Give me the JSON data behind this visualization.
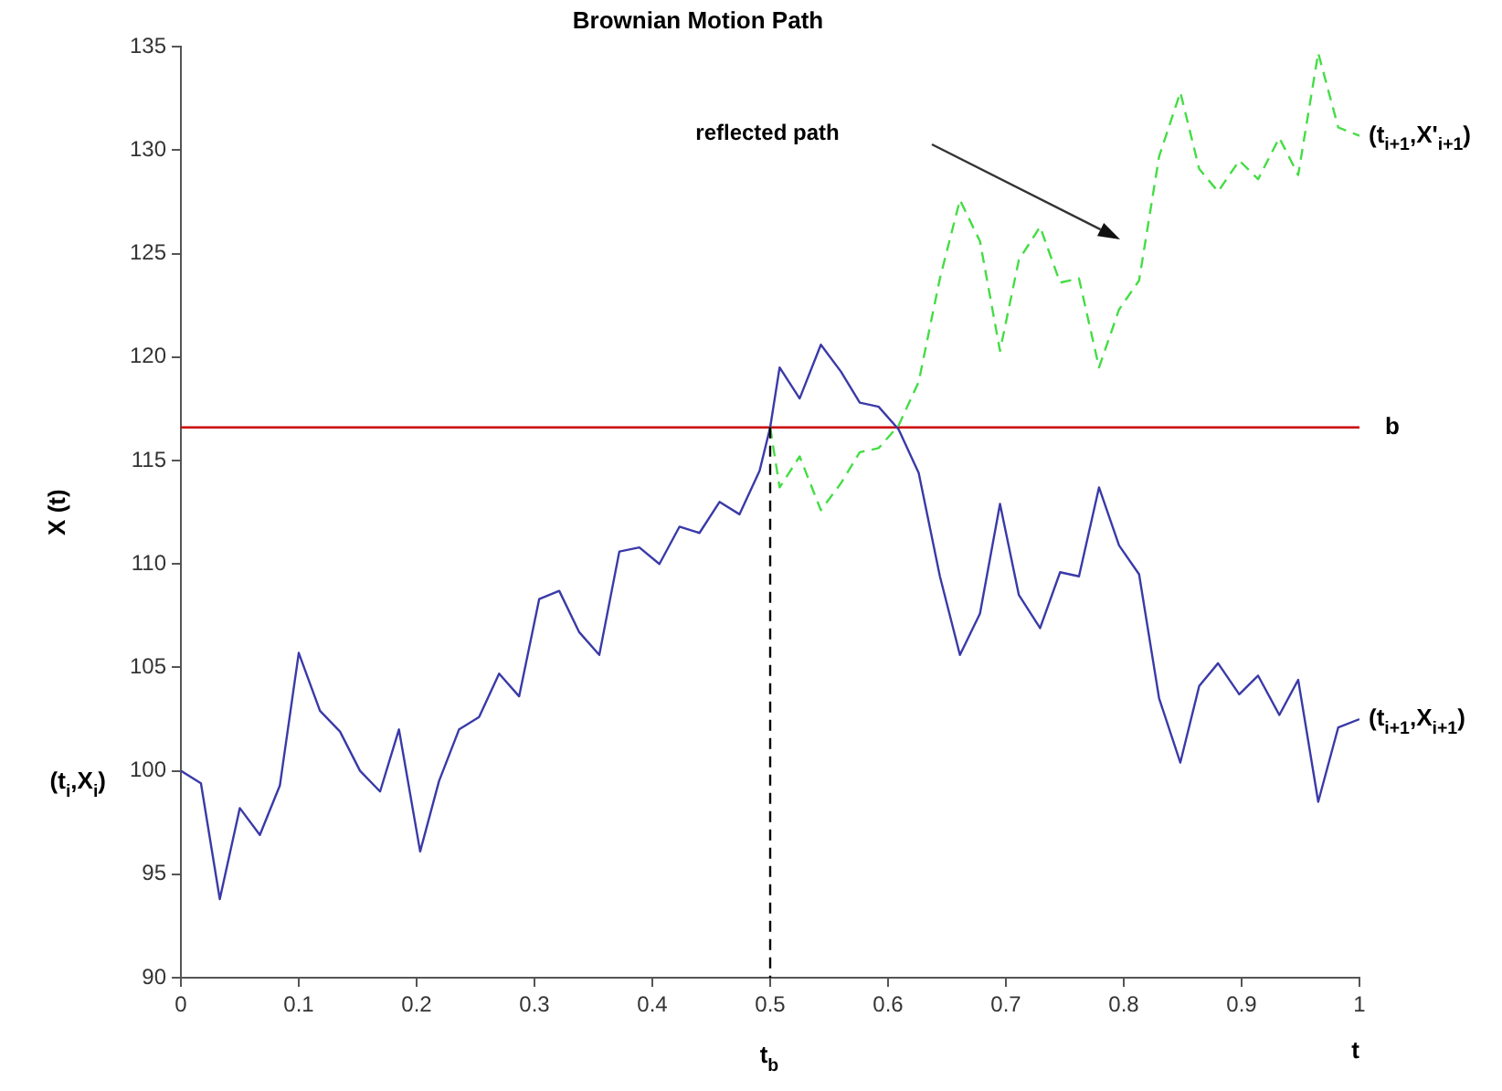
{
  "chart_data": {
    "type": "line",
    "title": "Brownian Motion Path",
    "xlabel": "t",
    "ylabel": "X (t)",
    "xlim": [
      0,
      1
    ],
    "xticks": [
      0,
      0.1,
      0.2,
      0.3,
      0.4,
      0.5,
      0.6,
      0.7,
      0.8,
      0.9,
      1
    ],
    "ylim": [
      90,
      135
    ],
    "yticks": [
      90,
      95,
      100,
      105,
      110,
      115,
      120,
      125,
      130,
      135
    ],
    "grid": false,
    "legend": false,
    "marker": "none",
    "series": [
      {
        "color": "#3a3aa8",
        "line_style": "solid",
        "x": [
          0,
          0.017,
          0.033,
          0.05,
          0.067,
          0.084,
          0.1,
          0.118,
          0.135,
          0.152,
          0.169,
          0.185,
          0.203,
          0.219,
          0.236,
          0.253,
          0.27,
          0.287,
          0.304,
          0.321,
          0.338,
          0.355,
          0.372,
          0.389,
          0.406,
          0.423,
          0.44,
          0.457,
          0.474,
          0.491,
          0.5,
          0.508,
          0.525,
          0.543,
          0.56,
          0.576,
          0.592,
          0.609,
          0.626,
          0.644,
          0.661,
          0.678,
          0.695,
          0.711,
          0.729,
          0.746,
          0.762,
          0.779,
          0.796,
          0.813,
          0.83,
          0.848,
          0.864,
          0.88,
          0.898,
          0.914,
          0.932,
          0.948,
          0.965,
          0.982,
          1
        ],
        "values": [
          100,
          99.4,
          93.8,
          98.2,
          96.9,
          99.3,
          105.7,
          102.9,
          101.9,
          100,
          99,
          102,
          96.1,
          99.5,
          102,
          102.6,
          104.7,
          103.6,
          108.3,
          108.7,
          106.7,
          105.6,
          110.6,
          110.8,
          110,
          111.8,
          111.5,
          113,
          112.4,
          114.5,
          116.6,
          119.5,
          118,
          120.6,
          119.3,
          117.8,
          117.6,
          116.5,
          114.4,
          109.4,
          105.6,
          107.6,
          112.9,
          108.5,
          106.9,
          109.6,
          109.4,
          113.7,
          110.9,
          109.5,
          103.5,
          100.4,
          104.1,
          105.2,
          103.7,
          104.6,
          102.7,
          104.4,
          98.5,
          102.1,
          102.5
        ]
      },
      {
        "color": "#44dd44",
        "line_style": "dashed",
        "x": [
          0.5,
          0.508,
          0.525,
          0.543,
          0.56,
          0.576,
          0.592,
          0.609,
          0.626,
          0.644,
          0.661,
          0.678,
          0.695,
          0.711,
          0.729,
          0.746,
          0.762,
          0.779,
          0.796,
          0.813,
          0.83,
          0.848,
          0.864,
          0.88,
          0.898,
          0.914,
          0.932,
          0.948,
          0.965,
          0.982,
          1
        ],
        "values": [
          116.6,
          113.7,
          115.2,
          112.6,
          113.9,
          115.4,
          115.6,
          116.7,
          118.8,
          123.8,
          127.6,
          125.6,
          120.3,
          124.7,
          126.3,
          123.6,
          123.8,
          119.5,
          122.3,
          123.7,
          129.7,
          132.8,
          129.1,
          128,
          129.5,
          128.6,
          130.6,
          128.8,
          134.7,
          131.1,
          130.7
        ]
      },
      {
        "color": "#000000",
        "line_style": "dashed",
        "x": [
          0.5,
          0.5
        ],
        "values": [
          116.6,
          90
        ]
      }
    ],
    "ref_lines": [
      {
        "axis": "y",
        "value": 116.6,
        "label": "b",
        "color": "#cc0000"
      }
    ],
    "annotations": [
      "reflected path",
      "(t$_{i}$,X$_{i}$)",
      {
        "text": "(t$_{i+1}$,X$_{i+1}$)",
        "x": 1,
        "y": 102.5
      },
      {
        "text": "(t$_{i+1}$,X'$_{i+1}$)",
        "x": 1,
        "y": 130.7
      },
      "t$_{b}$"
    ]
  }
}
